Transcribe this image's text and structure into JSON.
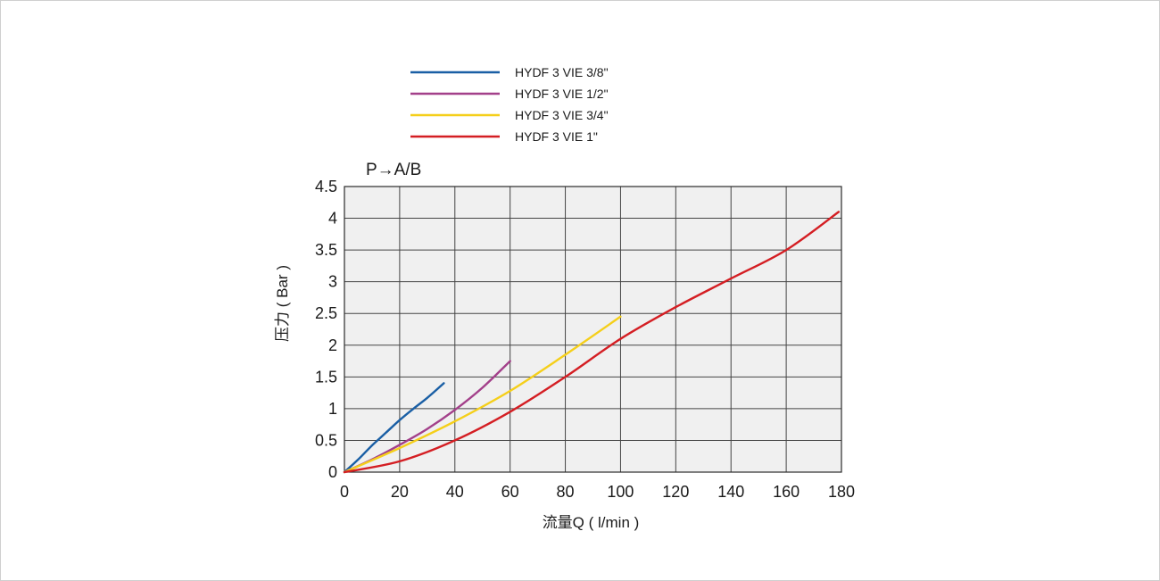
{
  "chart_data": {
    "type": "line",
    "subtitle": "P→A/B",
    "xlabel": "流量Q ( l/min )",
    "ylabel": "压力 ( Bar )",
    "xlim": [
      0,
      180
    ],
    "ylim": [
      0,
      4.5
    ],
    "x_ticks": [
      0,
      20,
      40,
      60,
      80,
      100,
      120,
      140,
      160,
      180
    ],
    "y_ticks": [
      0,
      0.5,
      1,
      1.5,
      2,
      2.5,
      3,
      3.5,
      4,
      4.5
    ],
    "y_tick_labels": [
      "0",
      "0.5",
      "1",
      "1.5",
      "2",
      "2.5",
      "3",
      "3.5",
      "4",
      "4.5"
    ],
    "grid": true,
    "legend_position": "top",
    "background_color": "#f0f0f0",
    "series": [
      {
        "name": "HYDF 3 VIE 3/8\"",
        "color": "#1a5fa5",
        "x": [
          0,
          5,
          10,
          15,
          20,
          25,
          30,
          36
        ],
        "y": [
          0,
          0.2,
          0.42,
          0.62,
          0.82,
          1.0,
          1.17,
          1.4
        ]
      },
      {
        "name": "HYDF 3 VIE 1/2\"",
        "color": "#a3408a",
        "x": [
          0,
          10,
          20,
          30,
          40,
          50,
          60
        ],
        "y": [
          0,
          0.2,
          0.43,
          0.68,
          0.98,
          1.33,
          1.75
        ]
      },
      {
        "name": "HYDF 3 VIE 3/4\"",
        "color": "#f5cf1a",
        "x": [
          0,
          20,
          40,
          60,
          80,
          100
        ],
        "y": [
          0,
          0.38,
          0.8,
          1.28,
          1.85,
          2.45
        ]
      },
      {
        "name": "HYDF 3 VIE 1\"",
        "color": "#d41e23",
        "x": [
          0,
          20,
          40,
          60,
          80,
          100,
          120,
          140,
          160,
          179
        ],
        "y": [
          0,
          0.17,
          0.5,
          0.95,
          1.5,
          2.1,
          2.6,
          3.05,
          3.5,
          4.1
        ]
      }
    ]
  }
}
